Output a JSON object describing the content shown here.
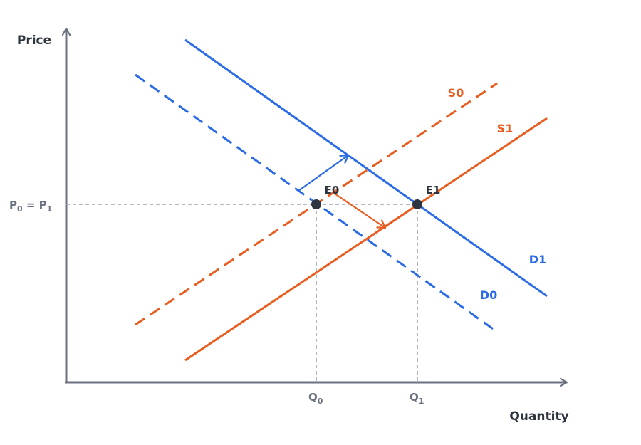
{
  "diagram": {
    "axes": {
      "y_label": "Price",
      "x_label": "Quantity"
    },
    "price_tick": {
      "p0_base": "P",
      "p0_sub": "0",
      "equals": " = ",
      "p1_base": "P",
      "p1_sub": "1"
    },
    "quantity_ticks": [
      {
        "base": "Q",
        "sub": "0"
      },
      {
        "base": "Q",
        "sub": "1"
      }
    ],
    "curves": {
      "s0": {
        "label": "S0",
        "color": "#e85d1f",
        "style": "dashed"
      },
      "s1": {
        "label": "S1",
        "color": "#e85d1f",
        "style": "solid"
      },
      "d0": {
        "label": "D0",
        "color": "#2b6be6",
        "style": "dashed"
      },
      "d1": {
        "label": "D1",
        "color": "#2b6be6",
        "style": "solid"
      }
    },
    "points": {
      "e0": {
        "label": "E0"
      },
      "e1": {
        "label": "E1"
      }
    },
    "colors": {
      "axis": "#6b7280",
      "guide": "#9ca3af",
      "point": "#2e3440",
      "supply": "#e85d1f",
      "demand": "#2b6be6"
    }
  }
}
